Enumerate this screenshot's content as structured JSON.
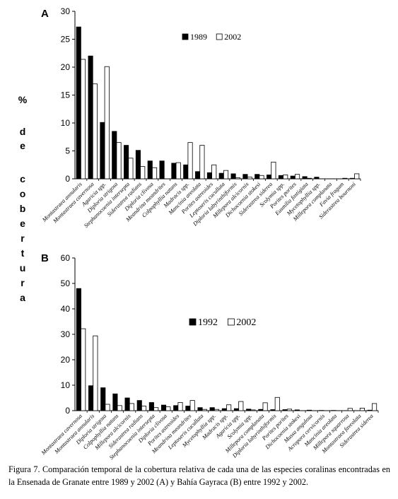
{
  "y_axis_label": {
    "pct": "%",
    "de": [
      "d",
      "e"
    ],
    "cobertura": [
      "c",
      "o",
      "b",
      "e",
      "r",
      "t",
      "u",
      "r",
      "a"
    ]
  },
  "caption": "Figura 7. Comparación temporal de la cobertura relativa de cada una de las especies coralinas encontradas en la Ensenada de Granate entre 1989 y 2002 (A) y Bahía Gayraca (B) entre 1992 y 2002.",
  "chart_data": [
    {
      "type": "bar",
      "panel_label": "A",
      "ylim": [
        0,
        30
      ],
      "yticks": [
        0,
        5,
        10,
        15,
        20,
        25,
        30
      ],
      "grid": false,
      "legend_position": "top-center",
      "categories": [
        "Montastraea annularis",
        "Montastraea cavernosa",
        "Agaricia spp.",
        "Diploria strigosa",
        "Stephanocoenia intersepta",
        "Siderastrea radians",
        "Diploria clivosa",
        "Meandrina meandrites",
        "Colpophyllia natans",
        "Madracis spp.",
        "Mancinia areolata",
        "Porites astreoides",
        "Leptoseris cucullata",
        "Diploria labyrinthiformis",
        "Millepora alcicornis",
        "Dichocoenia stokesi",
        "Siderastrea siderea",
        "Scolymia spp.",
        "Porites porites",
        "Eusmilia fastigiata",
        "Mycetophyllia spp.",
        "Millepora complanata",
        "Favia fragum",
        "Siderastrea bournoni"
      ],
      "series": [
        {
          "name": "1989",
          "color": "#000000",
          "values": [
            27.2,
            22.0,
            10.1,
            8.5,
            6.0,
            5.1,
            3.2,
            3.2,
            2.8,
            2.5,
            1.3,
            1.1,
            1.0,
            0.9,
            0.8,
            0.8,
            0.7,
            0.6,
            0.5,
            0.4,
            0.3,
            0.0,
            0.0,
            0.1
          ]
        },
        {
          "name": "2002",
          "color": "#ffffff",
          "values": [
            21.4,
            17.0,
            20.1,
            6.5,
            3.7,
            2.2,
            2.0,
            0.0,
            2.9,
            6.5,
            6.0,
            2.5,
            1.5,
            0.2,
            0.3,
            0.6,
            3.0,
            0.7,
            0.8,
            0.1,
            0.0,
            0.0,
            0.1,
            0.9
          ]
        }
      ]
    },
    {
      "type": "bar",
      "panel_label": "B",
      "ylim": [
        0,
        60
      ],
      "yticks": [
        0,
        10,
        20,
        30,
        40,
        50,
        60
      ],
      "grid": false,
      "legend_position": "top-center",
      "categories": [
        "Montastraea cavernosa",
        "Montastraea annularis",
        "Diploria strigosa",
        "Colpophyllia natans",
        "Millepora alcicornis",
        "Siderastrea radians",
        "Stephanocoenia intersepta",
        "Diploria clivosa",
        "Porites astreoides",
        "Meandrina meandrites",
        "Leptoseris cucullata",
        "Mycetophyllia spp.",
        "Madracis spp.",
        "Agaricia spp.",
        "Scolymia spp.",
        "Millepora complanata",
        "Diploria labyrinthiformis",
        "Porites porites",
        "Dichocoenia stokesi",
        "Mussa angulosa",
        "Acropora cervicornis",
        "Mancinia areolata",
        "Millepora squarrosa",
        "Montastraea faveolata",
        "Siderastrea siderea"
      ],
      "series": [
        {
          "name": "1992",
          "color": "#000000",
          "values": [
            48.0,
            9.8,
            9.0,
            6.6,
            5.0,
            4.0,
            3.2,
            2.2,
            2.0,
            1.8,
            1.2,
            1.2,
            0.8,
            0.8,
            0.6,
            0.5,
            0.4,
            0.4,
            0.3,
            0.2,
            0.1,
            0.1,
            0.0,
            0.0,
            0.2
          ]
        },
        {
          "name": "2002",
          "color": "#ffffff",
          "values": [
            32.2,
            29.4,
            2.5,
            2.0,
            2.8,
            1.8,
            1.2,
            1.5,
            3.2,
            4.0,
            0.5,
            0.5,
            2.3,
            3.6,
            0.3,
            3.1,
            5.2,
            0.6,
            0.0,
            0.0,
            0.0,
            0.0,
            0.9,
            1.0,
            2.8
          ]
        }
      ]
    }
  ]
}
